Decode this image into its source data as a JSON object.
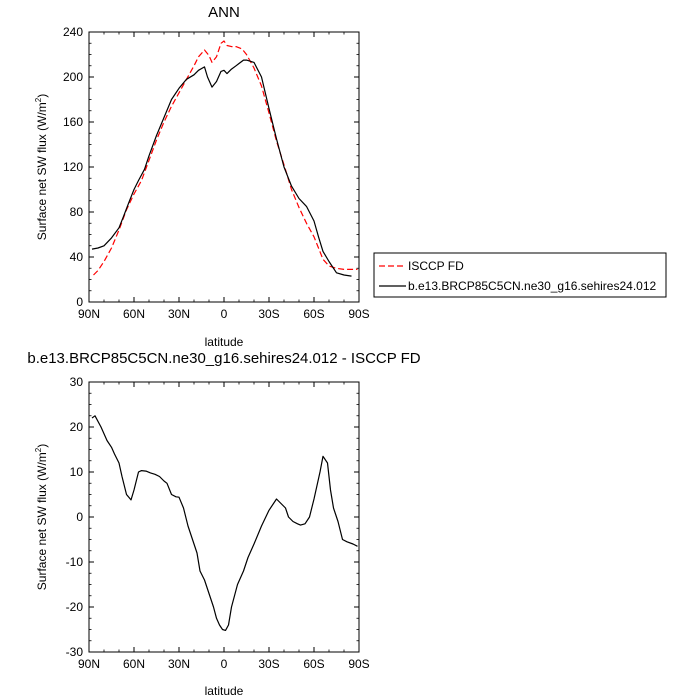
{
  "chart_data": [
    {
      "type": "line",
      "title": "ANN",
      "xlabel": "latitude",
      "ylabel": "Surface net SW flux (W/m",
      "ylabel_sup": "2",
      "ylabel_tail": ")",
      "xlim": [
        90,
        -90
      ],
      "ylim": [
        0,
        240
      ],
      "x_ticks": [
        90,
        60,
        30,
        0,
        -30,
        -60,
        -90
      ],
      "x_tick_labels": [
        "90N",
        "60N",
        "30N",
        "0",
        "30S",
        "60S",
        "90S"
      ],
      "y_ticks": [
        0,
        40,
        80,
        120,
        160,
        200,
        240
      ],
      "y_tick_labels": [
        "0",
        "40",
        "80",
        "120",
        "160",
        "200",
        "240"
      ],
      "legend": "outside-right",
      "series": [
        {
          "name": "ISCCP FD",
          "color": "#ff0000",
          "dash": "dashed",
          "x": [
            87,
            84,
            80,
            75,
            70,
            65,
            60,
            55,
            50,
            45,
            40,
            35,
            30,
            25,
            20,
            17,
            13,
            10,
            8,
            5,
            2,
            0,
            -2,
            -5,
            -8,
            -12,
            -15,
            -20,
            -25,
            -30,
            -35,
            -40,
            -45,
            -50,
            -55,
            -60,
            -63,
            -66,
            -70,
            -75,
            -80,
            -85,
            -89
          ],
          "y": [
            24,
            28,
            36,
            48,
            64,
            82,
            96,
            108,
            126,
            144,
            160,
            174,
            186,
            198,
            210,
            218,
            224,
            219,
            213,
            218,
            230,
            232,
            228,
            227,
            227,
            225,
            220,
            208,
            192,
            168,
            143,
            122,
            100,
            84,
            70,
            58,
            48,
            38,
            32,
            30,
            29,
            29,
            29
          ]
        },
        {
          "name": "b.e13.BRCP85C5CN.ne30_g16.sehires24.012",
          "color": "#000000",
          "dash": "solid",
          "x": [
            88,
            84,
            80,
            75,
            70,
            67,
            63,
            60,
            57,
            53,
            50,
            45,
            40,
            35,
            30,
            25,
            20,
            17,
            13,
            11,
            8,
            5,
            2,
            0,
            -2,
            -5,
            -8,
            -10,
            -13,
            -15,
            -20,
            -25,
            -30,
            -35,
            -40,
            -45,
            -50,
            -55,
            -60,
            -63,
            -66,
            -70,
            -75,
            -80,
            -85
          ],
          "y": [
            47,
            48,
            50,
            57,
            66,
            76,
            90,
            100,
            108,
            118,
            130,
            148,
            164,
            180,
            190,
            198,
            202,
            206,
            209,
            200,
            191,
            196,
            205,
            206,
            203,
            207,
            210,
            212,
            215,
            215,
            213,
            200,
            172,
            145,
            120,
            103,
            92,
            85,
            72,
            58,
            45,
            36,
            26,
            24,
            23
          ]
        }
      ]
    },
    {
      "type": "line",
      "title": "b.e13.BRCP85C5CN.ne30_g16.sehires24.012 - ISCCP FD",
      "xlabel": "latitude",
      "ylabel": "Surface net SW flux (W/m",
      "ylabel_sup": "2",
      "ylabel_tail": ")",
      "xlim": [
        90,
        -90
      ],
      "ylim": [
        -30,
        30
      ],
      "x_ticks": [
        90,
        60,
        30,
        0,
        -30,
        -60,
        -90
      ],
      "x_tick_labels": [
        "90N",
        "60N",
        "30N",
        "0",
        "30S",
        "60S",
        "90S"
      ],
      "y_ticks": [
        -30,
        -20,
        -10,
        0,
        10,
        20,
        30
      ],
      "y_tick_labels": [
        "-30",
        "-20",
        "-10",
        "0",
        "10",
        "20",
        "30"
      ],
      "series": [
        {
          "color": "#000000",
          "dash": "solid",
          "x": [
            88,
            86,
            82,
            78,
            75,
            73,
            70,
            68,
            65,
            62,
            60,
            57,
            55,
            52,
            49,
            46,
            43,
            40,
            38,
            35,
            32,
            30,
            27,
            24,
            21,
            18,
            16,
            13,
            10,
            7,
            5,
            3,
            1,
            -1,
            -3,
            -5,
            -9,
            -13,
            -16,
            -20,
            -25,
            -30,
            -35,
            -38,
            -41,
            -43,
            -46,
            -49,
            -51,
            -54,
            -57,
            -60,
            -62,
            -64,
            -66,
            -69,
            -71,
            -73,
            -76,
            -79,
            -82,
            -86,
            -89
          ],
          "y": [
            22,
            22.5,
            20,
            17,
            15.5,
            14,
            12,
            9,
            5,
            3.8,
            6,
            10,
            10.3,
            10.2,
            9.8,
            9.5,
            9,
            8,
            7.5,
            5,
            4.5,
            4.4,
            2,
            -2,
            -5,
            -8,
            -12,
            -14,
            -17,
            -20,
            -22.5,
            -24,
            -25,
            -25.2,
            -24,
            -20,
            -15,
            -12,
            -9,
            -6,
            -2,
            1.5,
            4,
            3,
            2,
            0,
            -1,
            -1.5,
            -1.8,
            -1.5,
            0,
            4,
            7,
            10,
            13.5,
            12,
            6,
            2,
            -1,
            -5,
            -5.5,
            -6,
            -6.5
          ]
        }
      ]
    }
  ]
}
